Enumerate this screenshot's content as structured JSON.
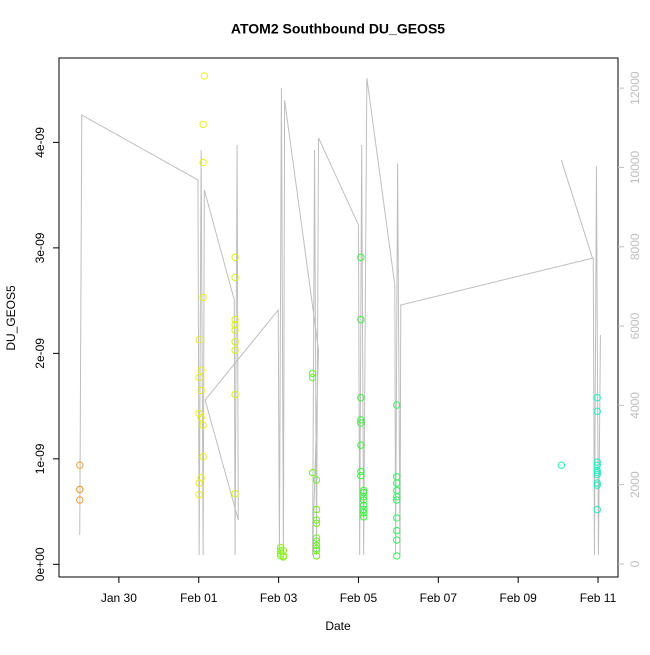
{
  "chart_data": {
    "type": "scatter",
    "title": "ATOM2 Southbound DU_GEOS5",
    "xlabel": "Date",
    "ylabel": "DU_GEOS5",
    "xlim": [
      28.5,
      42.5
    ],
    "xticks": [
      {
        "value": 30,
        "label": "Jan 30"
      },
      {
        "value": 32,
        "label": "Feb 01"
      },
      {
        "value": 34,
        "label": "Feb 03"
      },
      {
        "value": 36,
        "label": "Feb 05"
      },
      {
        "value": 38,
        "label": "Feb 07"
      },
      {
        "value": 40,
        "label": "Feb 09"
      },
      {
        "value": 42,
        "label": "Feb 11"
      }
    ],
    "ylim": [
      -1.2e-10,
      4.8e-09
    ],
    "yticks": [
      {
        "value": 0,
        "label": "0e+00"
      },
      {
        "value": 1e-09,
        "label": "1e-09"
      },
      {
        "value": 2e-09,
        "label": "2e-09"
      },
      {
        "value": 3e-09,
        "label": "3e-09"
      },
      {
        "value": 4e-09,
        "label": "4e-09"
      }
    ],
    "y2lim": [
      -328,
      12760
    ],
    "y2ticks": [
      0,
      2000,
      4000,
      6000,
      8000,
      10000,
      12000
    ],
    "y2color": "#bebebe",
    "series": [
      {
        "type": "scatter",
        "x": [
          29.02,
          29.02,
          29.02,
          29.02,
          32.14,
          32.11,
          32.11,
          32.11,
          32.01,
          32.06,
          32.01,
          32.06,
          32.01,
          32.06,
          32.11,
          32.11,
          32.06,
          32.01,
          32.01,
          32.91,
          32.91,
          32.91,
          32.91,
          32.91,
          32.91,
          32.91,
          32.91,
          32.91,
          34.05,
          34.05,
          34.05,
          34.05,
          34.12,
          34.12,
          34.12,
          34.85,
          34.85,
          34.85,
          34.95,
          34.95,
          34.95,
          34.95,
          34.95,
          34.95,
          34.95,
          34.95,
          34.95,
          34.95,
          36.06,
          36.06,
          36.06,
          36.06,
          36.06,
          36.06,
          36.06,
          36.06,
          36.13,
          36.13,
          36.13,
          36.13,
          36.13,
          36.13,
          36.13,
          36.13,
          36.96,
          36.96,
          36.96,
          36.96,
          36.96,
          36.96,
          36.96,
          36.96,
          36.96,
          36.96,
          41.08,
          41.98,
          41.98,
          41.98,
          41.98,
          41.98,
          41.98,
          41.98,
          41.98,
          41.98,
          41.98
        ],
        "values": [
          9.4e-10,
          7.1e-10,
          7.1e-10,
          6.1e-10,
          4.63e-09,
          4.17e-09,
          3.81e-09,
          2.53e-09,
          2.13e-09,
          1.84e-09,
          1.77e-09,
          1.65e-09,
          1.43e-09,
          1.39e-09,
          1.32e-09,
          1.02e-09,
          8.2e-10,
          7.7e-10,
          6.6e-10,
          2.91e-09,
          2.72e-09,
          2.32e-09,
          2.27e-09,
          2.22e-09,
          2.11e-09,
          2.03e-09,
          1.61e-09,
          6.7e-10,
          1.6e-10,
          1.3e-10,
          1e-10,
          8e-11,
          8e-11,
          7e-11,
          1.3e-10,
          1.81e-09,
          1.77e-09,
          8.7e-10,
          8e-10,
          5.2e-10,
          4.2e-10,
          3.9e-10,
          2.5e-10,
          2.2e-10,
          1.8e-10,
          1.5e-10,
          1.3e-10,
          8e-11,
          2.91e-09,
          2.32e-09,
          1.58e-09,
          1.37e-09,
          1.34e-09,
          1.13e-09,
          8.8e-10,
          8.4e-10,
          7e-10,
          6.8e-10,
          6.4e-10,
          5.6e-10,
          4.9e-10,
          4.5e-10,
          6.1e-10,
          5.2e-10,
          1.51e-09,
          8.3e-10,
          7.7e-10,
          7e-10,
          6.4e-10,
          6.1e-10,
          4.4e-10,
          3.2e-10,
          2.3e-10,
          8e-11,
          9.4e-10,
          1.58e-09,
          1.45e-09,
          9.7e-10,
          9.4e-10,
          8.9e-10,
          8.7e-10,
          8.5e-10,
          7.7e-10,
          7.5e-10,
          5.2e-10
        ],
        "colors": [
          "#f0a030",
          "#f0a030",
          "#f0a030",
          "#f0a030",
          "#e8f020",
          "#e8f020",
          "#e8f020",
          "#e8f020",
          "#e8f020",
          "#e8f020",
          "#e8f020",
          "#e8f020",
          "#e8f020",
          "#e8f020",
          "#e8f020",
          "#e8f020",
          "#e8f020",
          "#e8f020",
          "#e8f020",
          "#d8f020",
          "#d8f020",
          "#d8f020",
          "#d8f020",
          "#d8f020",
          "#d8f020",
          "#d8f020",
          "#d8f020",
          "#d8f020",
          "#90f020",
          "#90f020",
          "#90f020",
          "#90f020",
          "#90f020",
          "#90f020",
          "#90f020",
          "#70f020",
          "#70f020",
          "#70f020",
          "#70f020",
          "#70f020",
          "#70f020",
          "#70f020",
          "#70f020",
          "#70f020",
          "#70f020",
          "#70f020",
          "#70f020",
          "#70f020",
          "#40f040",
          "#40f040",
          "#40f040",
          "#40f040",
          "#40f040",
          "#40f040",
          "#40f040",
          "#40f040",
          "#40f040",
          "#40f040",
          "#40f040",
          "#40f040",
          "#40f040",
          "#40f040",
          "#40f040",
          "#40f040",
          "#30f060",
          "#30f060",
          "#30f060",
          "#30f060",
          "#30f060",
          "#30f060",
          "#30f060",
          "#30f060",
          "#30f060",
          "#30f060",
          "#20f0a0",
          "#20f0c0",
          "#20f0c0",
          "#20f0c0",
          "#20f0c0",
          "#20f0c0",
          "#20f0c0",
          "#20f0c0",
          "#20f0c0",
          "#20f0c0",
          "#20f0c0"
        ]
      },
      {
        "type": "line",
        "axis": "y2",
        "color": "#bebebe",
        "x": [
          29.02,
          29.07,
          31.98,
          32.01,
          32.06,
          32.11,
          32.14,
          32.89,
          32.91,
          32.96,
          32.99,
          32.16,
          33.99,
          34.02,
          34.07,
          34.12,
          34.15,
          35.0,
          34.85,
          34.9,
          34.95,
          35.0,
          36.0,
          36.03,
          36.08,
          36.13,
          36.21,
          36.91,
          36.93,
          36.98,
          37.04,
          37.06,
          41.88,
          41.91,
          41.96,
          42.01,
          42.06,
          null,
          41.08,
          41.86
        ],
        "values": [
          731,
          11324,
          9684,
          227,
          10441,
          227,
          9432,
          6658,
          227,
          10567,
          1110,
          4136,
          6406,
          227,
          12005,
          227,
          11702,
          5397,
          227,
          10441,
          227,
          10744,
          8550,
          227,
          10567,
          227,
          12257,
          7036,
          227,
          10103,
          227,
          6532,
          7717,
          227,
          10027,
          227,
          5775,
          null,
          10189,
          7717
        ]
      }
    ]
  }
}
